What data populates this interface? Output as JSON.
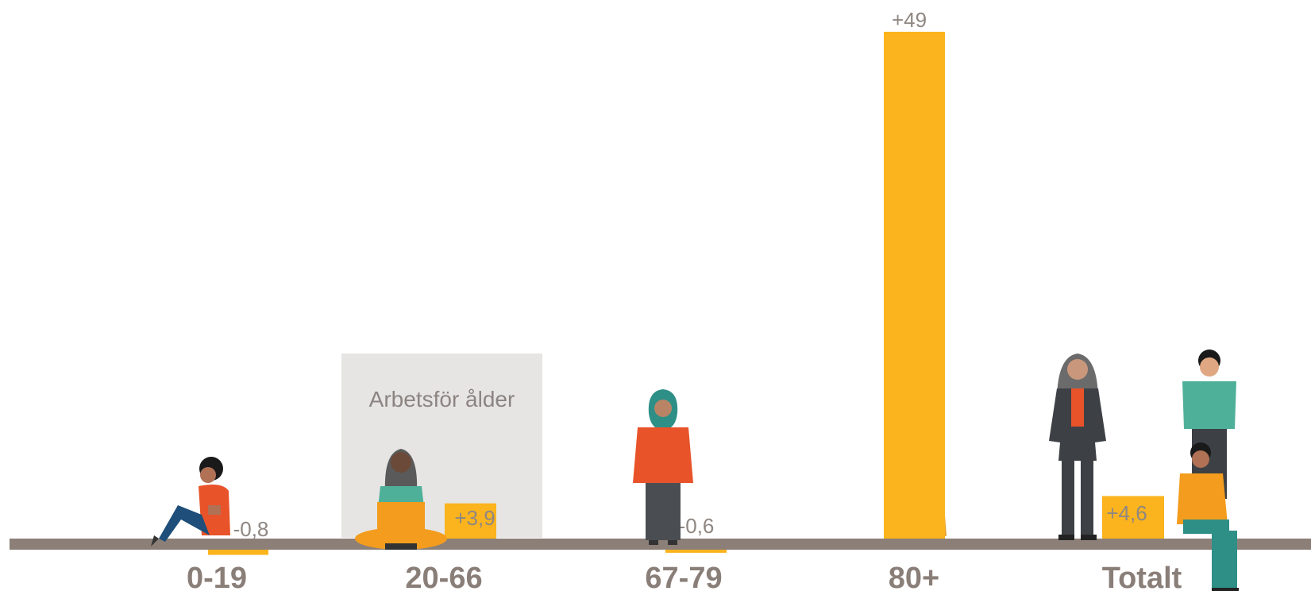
{
  "chart_data": {
    "type": "bar",
    "categories": [
      "0-19",
      "20-66",
      "67-79",
      "80+",
      "Totalt"
    ],
    "values": [
      -0.8,
      3.9,
      -0.6,
      49,
      4.6
    ],
    "data_labels": [
      "-0,8",
      "+3,9",
      "-0,6",
      "+49",
      "+4,6"
    ],
    "title": "",
    "xlabel": "",
    "ylabel": "",
    "ylim": [
      -1,
      49
    ],
    "grid": false,
    "highlight_box": {
      "category": "20-66",
      "text": "Arbetsför ålder"
    }
  },
  "colors": {
    "bar": "#fbb41d",
    "baseline": "#8c7f78",
    "category_text": "#8a7e78",
    "value_text": "#8f8782",
    "highlight_box": "#e6e5e4"
  },
  "illustrations": [
    "sitting-child-icon",
    "woman-with-laptop-icon",
    "woman-in-hijab-icon",
    "elderly-woman-with-cane-icon",
    "standing-woman-icon",
    "standing-man-icon",
    "sitting-man-icon"
  ]
}
